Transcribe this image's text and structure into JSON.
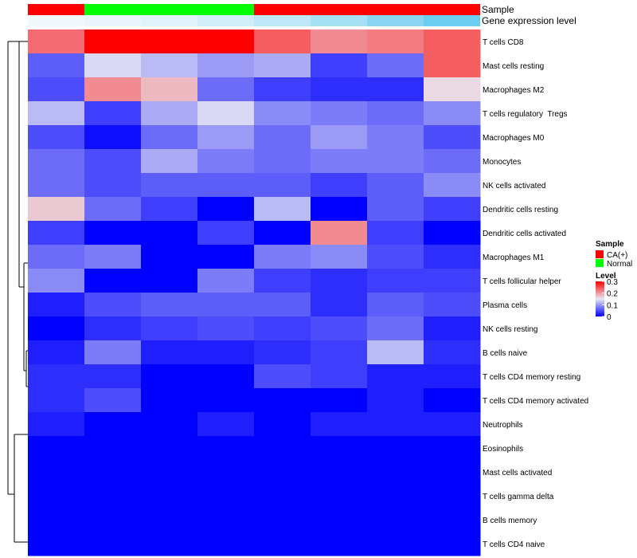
{
  "chart_data": {
    "type": "heatmap",
    "title": "",
    "columns": 8,
    "rows": [
      "T cells CD8",
      "Mast cells resting",
      "Macrophages M2",
      "T cells regulatory  Tregs",
      "Macrophages M0",
      "Monocytes",
      "NK cells activated",
      "Dendritic cells resting",
      "Dendritic cells activated",
      "Macrophages M1",
      "T cells follicular helper",
      "Plasma cells",
      "NK cells resting",
      "B cells naive",
      "T cells CD4 memory resting",
      "T cells CD4 memory activated",
      "Neutrophils",
      "Eosinophils",
      "Mast cells activated",
      "T cells gamma delta",
      "B cells memory",
      "T cells CD4 naive"
    ],
    "values": [
      [
        0.23,
        0.3,
        0.3,
        0.3,
        0.24,
        0.21,
        0.22,
        0.24
      ],
      [
        0.06,
        0.14,
        0.12,
        0.1,
        0.11,
        0.04,
        0.07,
        0.24
      ],
      [
        0.05,
        0.21,
        0.18,
        0.07,
        0.04,
        0.03,
        0.03,
        0.16
      ],
      [
        0.12,
        0.04,
        0.11,
        0.14,
        0.09,
        0.08,
        0.07,
        0.09
      ],
      [
        0.05,
        0.01,
        0.07,
        0.1,
        0.07,
        0.1,
        0.08,
        0.05
      ],
      [
        0.07,
        0.05,
        0.11,
        0.08,
        0.07,
        0.08,
        0.08,
        0.07
      ],
      [
        0.07,
        0.05,
        0.06,
        0.06,
        0.06,
        0.04,
        0.06,
        0.09
      ],
      [
        0.17,
        0.07,
        0.04,
        0.0,
        0.12,
        0.0,
        0.06,
        0.04
      ],
      [
        0.04,
        0.0,
        0.0,
        0.04,
        0.0,
        0.21,
        0.04,
        0.0
      ],
      [
        0.07,
        0.08,
        0.0,
        0.0,
        0.08,
        0.09,
        0.05,
        0.03
      ],
      [
        0.09,
        0.0,
        0.0,
        0.08,
        0.04,
        0.03,
        0.04,
        0.04
      ],
      [
        0.02,
        0.05,
        0.06,
        0.06,
        0.06,
        0.03,
        0.06,
        0.05
      ],
      [
        0.0,
        0.03,
        0.04,
        0.05,
        0.04,
        0.05,
        0.07,
        0.02
      ],
      [
        0.02,
        0.08,
        0.02,
        0.02,
        0.03,
        0.04,
        0.12,
        0.03
      ],
      [
        0.03,
        0.03,
        0.0,
        0.0,
        0.05,
        0.04,
        0.02,
        0.02
      ],
      [
        0.03,
        0.05,
        0.0,
        0.0,
        0.0,
        0.0,
        0.02,
        0.0
      ],
      [
        0.02,
        0.0,
        0.0,
        0.02,
        0.0,
        0.02,
        0.02,
        0.02
      ],
      [
        0.0,
        0.0,
        0.0,
        0.0,
        0.0,
        0.0,
        0.0,
        0.0
      ],
      [
        0.0,
        0.0,
        0.0,
        0.0,
        0.0,
        0.0,
        0.0,
        0.0
      ],
      [
        0.0,
        0.0,
        0.0,
        0.0,
        0.0,
        0.0,
        0.0,
        0.0
      ],
      [
        0.0,
        0.0,
        0.0,
        0.0,
        0.0,
        0.0,
        0.0,
        0.0
      ],
      [
        0.0,
        0.0,
        0.0,
        0.0,
        0.0,
        0.0,
        0.0,
        0.0
      ]
    ],
    "color_scale": {
      "low": "#0000ff",
      "mid": "#e8e8f2",
      "high": "#ff0000",
      "mid_value": 0.15,
      "range": [
        0,
        0.3
      ]
    },
    "annotations": [
      {
        "label": "Sample",
        "colors": [
          "#ff0000",
          "#00ff00",
          "#00ff00",
          "#00ff00",
          "#ff0000",
          "#ff0000",
          "#ff0000",
          "#ff0000"
        ]
      },
      {
        "label": "Gene expression level",
        "colors": [
          "#f2f9fc",
          "#eaf6fb",
          "#e0f2fa",
          "#d2eef9",
          "#bee8f7",
          "#a5e0f5",
          "#8ad6f2",
          "#6ccdf0"
        ]
      }
    ],
    "legend": {
      "position": "right",
      "sample_title": "Sample",
      "sample_items": [
        {
          "label": "CA(+)",
          "color": "#ff0000"
        },
        {
          "label": "Normal",
          "color": "#00ff00"
        }
      ],
      "level_title": "Level",
      "level_ticks": [
        0.3,
        0.2,
        0.1,
        0
      ],
      "level_tick_labels": [
        "0.3",
        "0.2",
        "0.1",
        "0"
      ]
    },
    "row_dendrogram": true
  }
}
